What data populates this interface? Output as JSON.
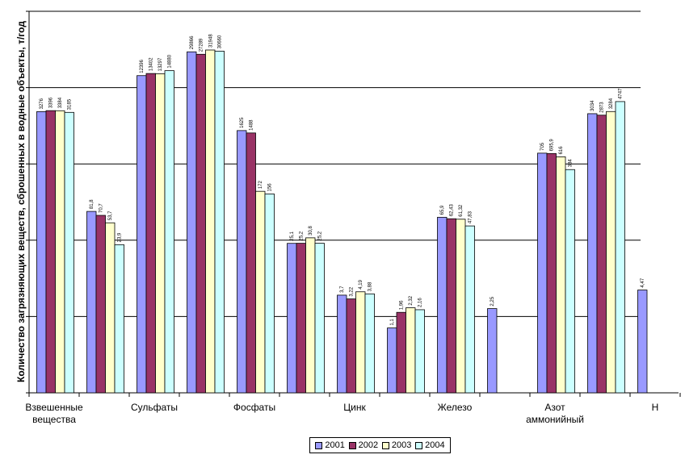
{
  "chart_data": {
    "type": "bar",
    "title": "",
    "ylabel": "Количество загрязняющих веществ, сброшенных в водные объекты, т/год",
    "xlabel": "",
    "grid": true,
    "categories": [
      "Взвешенные вещества",
      "",
      "Сульфаты",
      "",
      "Фосфаты",
      "",
      "Цинк",
      "",
      "Железо",
      "",
      "Азот аммонийный",
      "",
      "Н"
    ],
    "series": [
      {
        "name": "2001",
        "color": "#9999ff",
        "values": [
          3276,
          81.8,
          12396,
          29866,
          1625,
          25.1,
          3.7,
          1.1,
          65.9,
          2.25,
          705,
          3034,
          4.47
        ],
        "labels": [
          "3276",
          "81,8",
          "12396",
          "29866",
          "1625",
          "25,1",
          "3,7",
          "1,1",
          "65,9",
          "2,25",
          "705",
          "3034",
          "4,47"
        ]
      },
      {
        "name": "2002",
        "color": "#993366",
        "values": [
          3396,
          70.7,
          13402,
          27289,
          1488,
          25.2,
          3.22,
          1.96,
          62.43,
          null,
          695.9,
          2873,
          null
        ],
        "labels": [
          "3396",
          "70,7",
          "13402",
          "27289",
          "1488",
          "25,2",
          "3,22",
          "1,96",
          "62,43",
          "",
          "695,9",
          "2873",
          ""
        ]
      },
      {
        "name": "2003",
        "color": "#ffffcc",
        "values": [
          3384,
          53.7,
          13297,
          31948,
          172,
          30.8,
          4.19,
          2.32,
          61.32,
          null,
          616,
          3284,
          null
        ],
        "labels": [
          "3384",
          "53,7",
          "13297",
          "31948",
          "172",
          "30,8",
          "4,19",
          "2,32",
          "61,32",
          "",
          "616",
          "3284",
          ""
        ]
      },
      {
        "name": "2004",
        "color": "#ccffff",
        "values": [
          3185,
          23.9,
          14880,
          30660,
          156,
          25.2,
          3.88,
          2.16,
          47.83,
          null,
          384,
          4747,
          null
        ],
        "labels": [
          "3185",
          "23,9",
          "14880",
          "30660",
          "156",
          "25,2",
          "3,88",
          "2,16",
          "47,83",
          "",
          "384",
          "4747",
          ""
        ]
      }
    ],
    "legend": [
      "2001",
      "2002",
      "2003",
      "2004"
    ],
    "legend_position": "bottom"
  }
}
